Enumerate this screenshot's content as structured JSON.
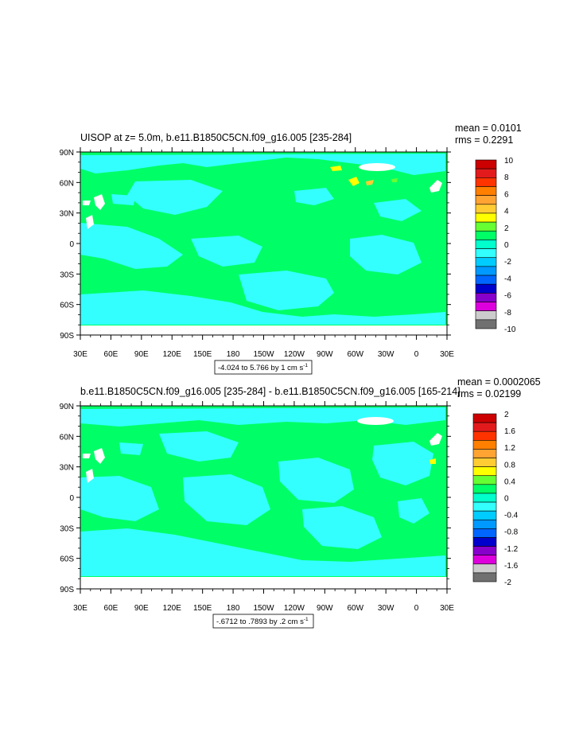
{
  "colors": {
    "background": "#ffffff",
    "ocean_base": "#00ff66",
    "mask": "#ffffff",
    "frame": "#000000"
  },
  "chart_data": [
    {
      "type": "heatmap",
      "title": "UISOP at z=   5.0m, b.e11.B1850C5CN.f09_g16.005 [235-284]",
      "stats": {
        "mean": "mean = 0.0101",
        "rms": "rms = 0.2291"
      },
      "x_ticks": [
        "30E",
        "60E",
        "90E",
        "120E",
        "150E",
        "180",
        "150W",
        "120W",
        "90W",
        "60W",
        "30W",
        "0",
        "30E"
      ],
      "y_ticks": [
        "90N",
        "60N",
        "30N",
        "0",
        "30S",
        "60S",
        "90S"
      ],
      "xlim_deg_east": [
        30,
        390
      ],
      "ylim_deg_north": [
        -90,
        90
      ],
      "contour_note": "-4.024 to 5.766 by 1 cm s",
      "contour_note_unit_sup": "-1",
      "colorbar": {
        "levels": [
          "10",
          "8",
          "6",
          "4",
          "2",
          "0",
          "-2",
          "-4",
          "-6",
          "-8",
          "-10"
        ],
        "colors": [
          "#cc0000",
          "#e31a1c",
          "#ff3300",
          "#ff7f00",
          "#ffa333",
          "#ffcc33",
          "#ffff00",
          "#66ff33",
          "#00ff66",
          "#00ffcc",
          "#33ffff",
          "#00ccff",
          "#0099ff",
          "#0066ff",
          "#0000cc",
          "#8800cc",
          "#dd00dd",
          "#cccccc",
          "#707070"
        ]
      }
    },
    {
      "type": "heatmap",
      "title": "b.e11.B1850C5CN.f09_g16.005 [235-284] - b.e11.B1850C5CN.f09_g16.005 [165-214]",
      "stats": {
        "mean": "mean = 0.0002065",
        "rms": "rms = 0.02199"
      },
      "x_ticks": [
        "30E",
        "60E",
        "90E",
        "120E",
        "150E",
        "180",
        "150W",
        "120W",
        "90W",
        "60W",
        "30W",
        "0",
        "30E"
      ],
      "y_ticks": [
        "90N",
        "60N",
        "30N",
        "0",
        "30S",
        "60S",
        "90S"
      ],
      "xlim_deg_east": [
        30,
        390
      ],
      "ylim_deg_north": [
        -90,
        90
      ],
      "contour_note": "-.6712 to .7893 by .2 cm s",
      "contour_note_unit_sup": "-1",
      "colorbar": {
        "levels": [
          "2",
          "1.6",
          "1.2",
          "0.8",
          "0.4",
          "0",
          "-0.4",
          "-0.8",
          "-1.2",
          "-1.6",
          "-2"
        ],
        "colors": [
          "#cc0000",
          "#e31a1c",
          "#ff3300",
          "#ff7f00",
          "#ffa333",
          "#ffcc33",
          "#ffff00",
          "#66ff33",
          "#00ff66",
          "#00ffcc",
          "#33ffff",
          "#00ccff",
          "#0099ff",
          "#0066ff",
          "#0000cc",
          "#8800cc",
          "#dd00dd",
          "#cccccc",
          "#707070"
        ]
      }
    }
  ]
}
